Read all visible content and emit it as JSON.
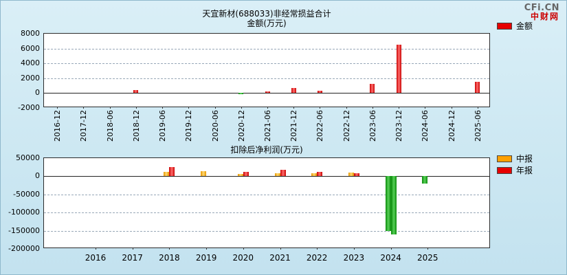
{
  "page": {
    "logo": {
      "line1": "CFi.CN",
      "line2": "中财网"
    }
  },
  "colors": {
    "amount_bar": "#e60000",
    "interim_bar": "#ffa000",
    "annual_bar": "#e60000",
    "negative_bar": "#00a000",
    "background": "#cfe9f3"
  },
  "chart_data": [
    {
      "type": "bar",
      "title": "天宜新材(688033)非经常损益合计",
      "subtitle": "金额(万元)",
      "categories": [
        "2016-12",
        "2017-12",
        "2018-06",
        "2018-12",
        "2019-06",
        "2019-12",
        "2020-06",
        "2020-12",
        "2021-06",
        "2021-12",
        "2022-06",
        "2022-12",
        "2023-06",
        "2023-12",
        "2024-06",
        "2024-12",
        "2025-06"
      ],
      "series": [
        {
          "name": "金额",
          "color": "#e60000",
          "values": [
            null,
            null,
            null,
            400,
            null,
            null,
            null,
            -150,
            250,
            700,
            300,
            null,
            1200,
            6500,
            null,
            null,
            1500
          ]
        }
      ],
      "negative_color": "#00a000",
      "ylim": [
        -2000,
        8000
      ],
      "yticks": [
        -2000,
        0,
        2000,
        4000,
        6000,
        8000
      ],
      "xlabel": "",
      "ylabel": "",
      "grid": "horizontal-dashed",
      "legend_position": "right-top",
      "x_label_rotation": -90
    },
    {
      "type": "bar",
      "title": "扣除后净利润(万元)",
      "subtitle": "",
      "categories": [
        "2016",
        "2017",
        "2018",
        "2019",
        "2020",
        "2021",
        "2022",
        "2023",
        "2024",
        "2025"
      ],
      "series": [
        {
          "name": "中报",
          "color": "#ffa000",
          "values": [
            null,
            null,
            13000,
            15000,
            6000,
            8000,
            8000,
            9500,
            -150000,
            -20000
          ]
        },
        {
          "name": "年报",
          "color": "#e60000",
          "values": [
            null,
            null,
            25000,
            null,
            12000,
            18000,
            13000,
            7500,
            -160000,
            null
          ]
        }
      ],
      "negative_color": "#00a000",
      "ylim": [
        -200000,
        50000
      ],
      "yticks": [
        -200000,
        -150000,
        -100000,
        -50000,
        0,
        50000
      ],
      "xlabel": "",
      "ylabel": "",
      "grid": "horizontal-dashed",
      "legend_position": "right-top",
      "x_label_rotation": 0
    }
  ]
}
